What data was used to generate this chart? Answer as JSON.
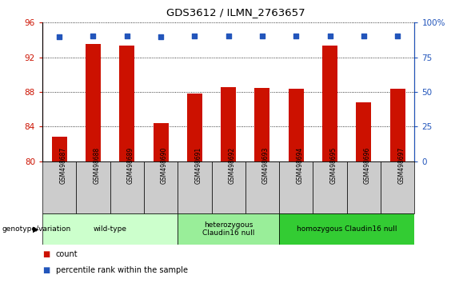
{
  "title": "GDS3612 / ILMN_2763657",
  "samples": [
    "GSM498687",
    "GSM498688",
    "GSM498689",
    "GSM498690",
    "GSM498691",
    "GSM498692",
    "GSM498693",
    "GSM498694",
    "GSM498695",
    "GSM498696",
    "GSM498697"
  ],
  "bar_values": [
    82.8,
    93.5,
    93.4,
    84.4,
    87.8,
    88.6,
    88.5,
    88.4,
    93.4,
    86.8,
    88.4
  ],
  "percentile_values": [
    90.0,
    90.3,
    90.3,
    89.9,
    90.2,
    90.2,
    90.3,
    90.3,
    90.3,
    90.2,
    90.3
  ],
  "bar_color": "#cc1100",
  "percentile_color": "#2255bb",
  "ylim_left": [
    80,
    96
  ],
  "yticks_left": [
    80,
    84,
    88,
    92,
    96
  ],
  "ylim_right": [
    0,
    100
  ],
  "yticks_right": [
    0,
    25,
    50,
    75,
    100
  ],
  "yticklabels_right": [
    "0",
    "25",
    "50",
    "75",
    "100%"
  ],
  "groups": [
    {
      "label": "wild-type",
      "start": 0,
      "end": 3,
      "color": "#ccffcc"
    },
    {
      "label": "heterozygous\nClaudin16 null",
      "start": 4,
      "end": 6,
      "color": "#99ee99"
    },
    {
      "label": "homozygous Claudin16 null",
      "start": 7,
      "end": 10,
      "color": "#33cc33"
    }
  ],
  "group_label_prefix": "genotype/variation",
  "legend_count_label": "count",
  "legend_percentile_label": "percentile rank within the sample",
  "bar_width": 0.45,
  "background_color": "#ffffff",
  "tick_area_color": "#cccccc"
}
